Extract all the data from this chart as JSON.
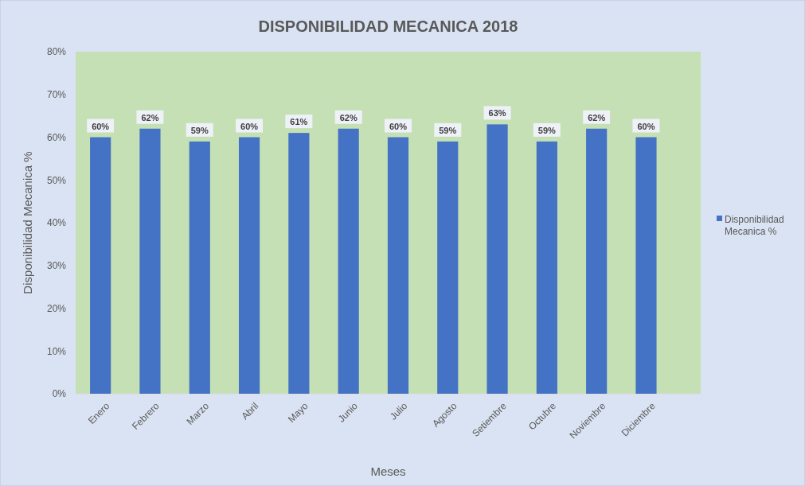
{
  "chart_data": {
    "type": "bar",
    "title": "DISPONIBILIDAD MECANICA 2018",
    "xlabel": "Meses",
    "ylabel": "Disponibilidad Mecanica %",
    "categories": [
      "Enero",
      "Febrero",
      "Marzo",
      "Abril",
      "Mayo",
      "Junio",
      "Julio",
      "Agosto",
      "Setiembre",
      "Octubre",
      "Noviembre",
      "Diciembre"
    ],
    "series": [
      {
        "name": "Disponibilidad Mecanica %",
        "color": "#4472c4",
        "values": [
          60,
          62,
          59,
          60,
          61,
          62,
          60,
          59,
          63,
          59,
          62,
          60
        ],
        "value_labels": [
          "60%",
          "62%",
          "59%",
          "60%",
          "61%",
          "62%",
          "60%",
          "59%",
          "63%",
          "59%",
          "62%",
          "60%"
        ]
      }
    ],
    "ylim": [
      0,
      80
    ],
    "yticks": [
      {
        "value": 0,
        "label": "0%"
      },
      {
        "value": 10,
        "label": "10%"
      },
      {
        "value": 20,
        "label": "20%"
      },
      {
        "value": 30,
        "label": "30%"
      },
      {
        "value": 40,
        "label": "40%"
      },
      {
        "value": 50,
        "label": "50%"
      },
      {
        "value": 60,
        "label": "60%"
      },
      {
        "value": 70,
        "label": "70%"
      },
      {
        "value": 80,
        "label": "80%"
      }
    ],
    "grid": false,
    "legend": "right"
  }
}
